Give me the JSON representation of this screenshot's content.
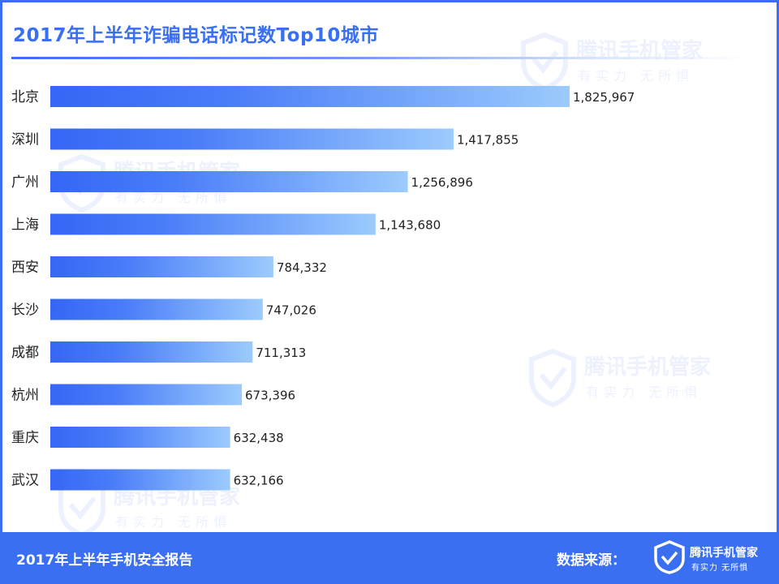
{
  "title": "2017年上半年诈骗电话标记数Top10城市",
  "watermark": {
    "brand": "腾讯手机管家",
    "slogan": "有实力  无所惧"
  },
  "footer": {
    "report_name": "2017年上半年手机安全报告",
    "source_label": "数据来源：",
    "brand": "腾讯手机管家",
    "slogan": "有实力  无所惧"
  },
  "colors": {
    "accent": "#3a6ff2",
    "bar_start": "#3566f6",
    "bar_end": "#9ccbfd"
  },
  "chart_data": {
    "type": "bar",
    "orientation": "horizontal",
    "title": "2017年上半年诈骗电话标记数Top10城市",
    "categories": [
      "北京",
      "深圳",
      "广州",
      "上海",
      "西安",
      "长沙",
      "成都",
      "杭州",
      "重庆",
      "武汉"
    ],
    "values": [
      1825967,
      1417855,
      1256896,
      1143680,
      784332,
      747026,
      711313,
      673396,
      632438,
      632166
    ],
    "value_labels": [
      "1,825,967",
      "1,417,855",
      "1,256,896",
      "1,143,680",
      "784,332",
      "747,026",
      "711,313",
      "673,396",
      "632,438",
      "632,166"
    ],
    "xlim": [
      0,
      1825967
    ],
    "grid": false,
    "legend": "none"
  }
}
